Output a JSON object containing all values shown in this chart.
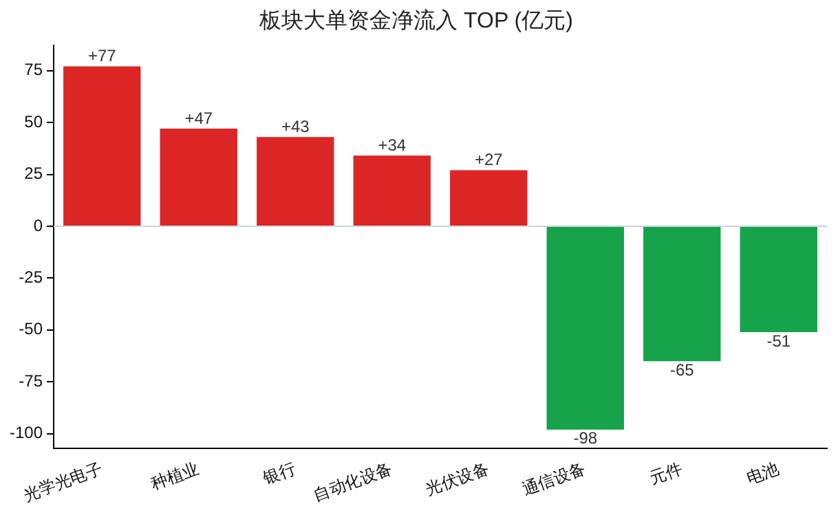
{
  "chart_data": {
    "type": "bar",
    "title": "板块大单资金净流入 TOP (亿元)",
    "categories": [
      "光学光电子",
      "种植业",
      "银行",
      "自动化设备",
      "光伏设备",
      "通信设备",
      "元件",
      "电池"
    ],
    "values": [
      77,
      47,
      43,
      34,
      27,
      -98,
      -65,
      -51
    ],
    "colors": [
      "#dc2626",
      "#dc2626",
      "#dc2626",
      "#dc2626",
      "#dc2626",
      "#16a34a",
      "#16a34a",
      "#16a34a"
    ],
    "value_labels": [
      "+77",
      "+47",
      "+43",
      "+34",
      "+27",
      "-98",
      "-65",
      "-51"
    ],
    "ylim": [
      -107,
      87
    ],
    "yticks": [
      -100,
      -75,
      -50,
      -25,
      0,
      25,
      50,
      75
    ],
    "ref_lines": [
      {
        "axis": "y",
        "value": 0,
        "color": "#cbd5e1"
      }
    ],
    "grid": false,
    "legend": false
  }
}
